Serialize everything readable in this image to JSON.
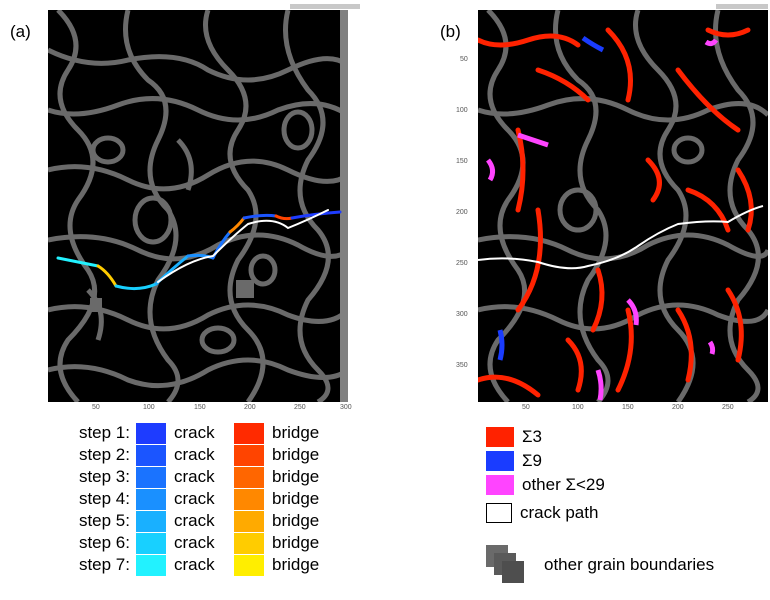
{
  "panels": {
    "a": {
      "label": "(a)",
      "x_ticks": [
        "50",
        "100",
        "150",
        "200",
        "250",
        "300"
      ]
    },
    "b": {
      "label": "(b)",
      "x_ticks": [
        "50",
        "100",
        "150",
        "200",
        "250"
      ],
      "y_ticks": [
        "50",
        "100",
        "150",
        "200",
        "250",
        "300",
        "350"
      ]
    }
  },
  "legend_a": {
    "rows": [
      {
        "step": "step 1:",
        "crack": "crack",
        "bridge": "bridge",
        "crack_color": "#1e3cff",
        "bridge_color": "#ff2a00"
      },
      {
        "step": "step 2:",
        "crack": "crack",
        "bridge": "bridge",
        "crack_color": "#1b55ff",
        "bridge_color": "#ff4400"
      },
      {
        "step": "step 3:",
        "crack": "crack",
        "bridge": "bridge",
        "crack_color": "#1a73ff",
        "bridge_color": "#ff6600"
      },
      {
        "step": "step 4:",
        "crack": "crack",
        "bridge": "bridge",
        "crack_color": "#1a90ff",
        "bridge_color": "#ff8800"
      },
      {
        "step": "step 5:",
        "crack": "crack",
        "bridge": "bridge",
        "crack_color": "#19b0ff",
        "bridge_color": "#ffaa00"
      },
      {
        "step": "step 6:",
        "crack": "crack",
        "bridge": "bridge",
        "crack_color": "#18d0ff",
        "bridge_color": "#ffcc00"
      },
      {
        "step": "step 7:",
        "crack": "crack",
        "bridge": "bridge",
        "crack_color": "#22f2ff",
        "bridge_color": "#ffee00"
      }
    ]
  },
  "legend_b": {
    "sigma3": "Σ3",
    "sigma9": "Σ9",
    "other": "other Σ<29",
    "crack_path": "crack path",
    "other_gb": "other grain boundaries",
    "sigma3_color": "#ff2200",
    "sigma9_color": "#1a3cff",
    "other_color": "#ff44ff",
    "gb_color": "#5a5a5a"
  }
}
